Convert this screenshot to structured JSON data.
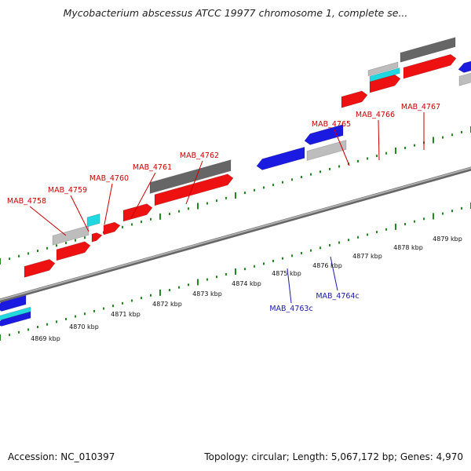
{
  "title": "Mycobacterium abscessus ATCC 19977 chromosome 1, complete se...",
  "footer": {
    "accession": "Accession: NC_010397",
    "topology": "Topology: circular; Length: 5,067,172 bp; Genes: 4,970"
  },
  "colors": {
    "forward_gene": "#ee1111",
    "reverse_gene": "#1a1ae0",
    "gray_feature": "#bdbdbd",
    "dark_feature": "#666666",
    "cyan_feature": "#22d8e0",
    "tick": "#228822",
    "backbone": "#8c8c8c",
    "forward_label": "#cc0000",
    "reverse_label": "#1a1aaa"
  },
  "scale_labels": [
    "4869 kbp",
    "4870 kbp",
    "4871 kbp",
    "4872 kbp",
    "4873 kbp",
    "4874 kbp",
    "4875 kbp",
    "4876 kbp",
    "4877 kbp",
    "4878 kbp",
    "4879 kbp"
  ],
  "forward_gene_labels": [
    "MAB_4758",
    "MAB_4759",
    "MAB_4760",
    "MAB_4761",
    "MAB_4762",
    "MAB_4765",
    "MAB_4766",
    "MAB_4767"
  ],
  "reverse_gene_labels": [
    "MAB_4763c",
    "MAB_4764c"
  ]
}
